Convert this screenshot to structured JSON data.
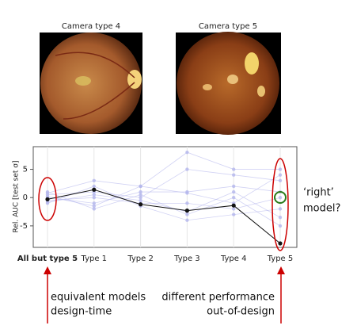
{
  "images": [
    {
      "title": "Camera type 4"
    },
    {
      "title": "Camera type 5"
    }
  ],
  "chart_data": {
    "type": "line",
    "ylabel": "Rel. AUC [test set σ]",
    "categories": [
      "All but type 5",
      "Type 1",
      "Type 2",
      "Type 3",
      "Type 4",
      "Type 5"
    ],
    "ylim": [
      -8.8,
      9
    ],
    "yticks": [
      5,
      0,
      -5
    ],
    "series": [
      {
        "color": "#b4b6ec",
        "values": [
          0.8,
          3,
          2,
          8,
          5,
          5
        ]
      },
      {
        "color": "#b4b6ec",
        "values": [
          0.5,
          1,
          0,
          5,
          4,
          3
        ]
      },
      {
        "color": "#b4b6ec",
        "values": [
          0,
          -1,
          1,
          1,
          2,
          1
        ]
      },
      {
        "color": "#b4b6ec",
        "values": [
          -0.5,
          0,
          -1,
          -1,
          -2,
          0
        ]
      },
      {
        "color": "#b4b6ec",
        "values": [
          1,
          -2,
          0.5,
          -3,
          0,
          -5
        ]
      },
      {
        "color": "#b4b6ec",
        "values": [
          -1,
          2,
          -1.5,
          -4,
          -3,
          -2
        ]
      },
      {
        "color": "#b4b6ec",
        "values": [
          0.2,
          -1.5,
          2,
          0.8,
          -1,
          4
        ]
      },
      {
        "color": "#b4b6ec",
        "values": [
          -0.8,
          0.5,
          -0.5,
          -2.5,
          1,
          -3.5
        ]
      },
      {
        "color": "#111111",
        "values": [
          -0.3,
          1.4,
          -1.2,
          -2.3,
          -1.4,
          -8.1
        ]
      }
    ]
  },
  "annotations": {
    "right_model": [
      "‘right’",
      "model?"
    ],
    "left": [
      "equivalent models",
      "design-time"
    ],
    "right": [
      "different performance",
      "out-of-design"
    ]
  }
}
